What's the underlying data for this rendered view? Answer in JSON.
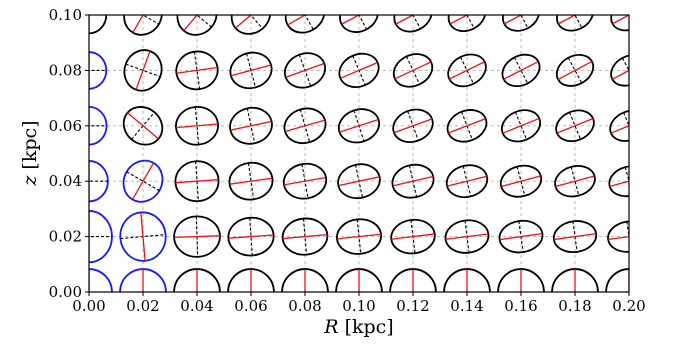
{
  "chart_data": {
    "type": "scatter",
    "title": "",
    "xlabel": {
      "symbol": "R",
      "unit": "[kpc]"
    },
    "ylabel": {
      "symbol": "z",
      "unit": "[kpc]"
    },
    "xlim": [
      0.0,
      0.2
    ],
    "ylim": [
      0.0,
      0.1
    ],
    "xticks": [
      "0.00",
      "0.02",
      "0.04",
      "0.06",
      "0.08",
      "0.10",
      "0.12",
      "0.14",
      "0.16",
      "0.18",
      "0.20"
    ],
    "yticks": [
      "0.00",
      "0.02",
      "0.04",
      "0.06",
      "0.08",
      "0.10"
    ],
    "grid": true,
    "grid_style": "dashed",
    "glyph": "velocity ellipse with major axis (red) and minor axis (dashed black)",
    "colors": {
      "ellipse_default": "#000000",
      "ellipse_highlight": "#1a1aff",
      "major_axis": "#e8131b",
      "minor_axis": "#000000",
      "grid": "#b3b3b3"
    },
    "x": [
      0.0,
      0.02,
      0.04,
      0.06,
      0.08,
      0.1,
      0.12,
      0.14,
      0.16,
      0.18,
      0.2
    ],
    "z": [
      0.0,
      0.02,
      0.04,
      0.06,
      0.08,
      0.1
    ],
    "note_units": "semi-axis lengths a, b given in kpc; tilt in degrees (counterclockwise from +R axis)",
    "points": [
      {
        "R": 0.0,
        "z": 0.0,
        "a": 0.0085,
        "b": 0.0085,
        "tilt": 90,
        "color": "blue"
      },
      {
        "R": 0.02,
        "z": 0.0,
        "a": 0.0085,
        "b": 0.0085,
        "tilt": 90,
        "color": "blue"
      },
      {
        "R": 0.04,
        "z": 0.0,
        "a": 0.0085,
        "b": 0.0085,
        "tilt": 90,
        "color": "black"
      },
      {
        "R": 0.06,
        "z": 0.0,
        "a": 0.0085,
        "b": 0.0085,
        "tilt": 90,
        "color": "black"
      },
      {
        "R": 0.08,
        "z": 0.0,
        "a": 0.0085,
        "b": 0.0085,
        "tilt": 90,
        "color": "black"
      },
      {
        "R": 0.1,
        "z": 0.0,
        "a": 0.0085,
        "b": 0.0085,
        "tilt": 90,
        "color": "black"
      },
      {
        "R": 0.12,
        "z": 0.0,
        "a": 0.0085,
        "b": 0.0085,
        "tilt": 90,
        "color": "black"
      },
      {
        "R": 0.14,
        "z": 0.0,
        "a": 0.0085,
        "b": 0.0085,
        "tilt": 90,
        "color": "black"
      },
      {
        "R": 0.16,
        "z": 0.0,
        "a": 0.0085,
        "b": 0.0085,
        "tilt": 90,
        "color": "black"
      },
      {
        "R": 0.18,
        "z": 0.0,
        "a": 0.0085,
        "b": 0.0085,
        "tilt": 90,
        "color": "black"
      },
      {
        "R": 0.2,
        "z": 0.0,
        "a": 0.0085,
        "b": 0.0085,
        "tilt": 90,
        "color": "black"
      },
      {
        "R": 0.0,
        "z": 0.02,
        "a": 0.0095,
        "b": 0.0085,
        "tilt": 90,
        "color": "blue"
      },
      {
        "R": 0.02,
        "z": 0.02,
        "a": 0.009,
        "b": 0.0084,
        "tilt": 95,
        "color": "blue"
      },
      {
        "R": 0.04,
        "z": 0.02,
        "a": 0.0085,
        "b": 0.0075,
        "tilt": 2,
        "color": "black"
      },
      {
        "R": 0.06,
        "z": 0.02,
        "a": 0.0084,
        "b": 0.007,
        "tilt": 4,
        "color": "black"
      },
      {
        "R": 0.08,
        "z": 0.02,
        "a": 0.0083,
        "b": 0.0067,
        "tilt": 5,
        "color": "black"
      },
      {
        "R": 0.1,
        "z": 0.02,
        "a": 0.0082,
        "b": 0.0064,
        "tilt": 6,
        "color": "black"
      },
      {
        "R": 0.12,
        "z": 0.02,
        "a": 0.0081,
        "b": 0.0062,
        "tilt": 7,
        "color": "black"
      },
      {
        "R": 0.14,
        "z": 0.02,
        "a": 0.008,
        "b": 0.006,
        "tilt": 7,
        "color": "black"
      },
      {
        "R": 0.16,
        "z": 0.02,
        "a": 0.008,
        "b": 0.0058,
        "tilt": 8,
        "color": "black"
      },
      {
        "R": 0.18,
        "z": 0.02,
        "a": 0.0079,
        "b": 0.0057,
        "tilt": 8,
        "color": "black"
      },
      {
        "R": 0.2,
        "z": 0.02,
        "a": 0.0078,
        "b": 0.0056,
        "tilt": 8,
        "color": "black"
      },
      {
        "R": 0.0,
        "z": 0.04,
        "a": 0.0075,
        "b": 0.007,
        "tilt": 90,
        "color": "blue"
      },
      {
        "R": 0.02,
        "z": 0.04,
        "a": 0.0078,
        "b": 0.007,
        "tilt": 60,
        "color": "blue"
      },
      {
        "R": 0.04,
        "z": 0.04,
        "a": 0.008,
        "b": 0.0074,
        "tilt": 4,
        "color": "black"
      },
      {
        "R": 0.06,
        "z": 0.04,
        "a": 0.008,
        "b": 0.0068,
        "tilt": 8,
        "color": "black"
      },
      {
        "R": 0.08,
        "z": 0.04,
        "a": 0.0079,
        "b": 0.0064,
        "tilt": 10,
        "color": "black"
      },
      {
        "R": 0.1,
        "z": 0.04,
        "a": 0.0078,
        "b": 0.0062,
        "tilt": 12,
        "color": "black"
      },
      {
        "R": 0.12,
        "z": 0.04,
        "a": 0.0077,
        "b": 0.006,
        "tilt": 13,
        "color": "black"
      },
      {
        "R": 0.14,
        "z": 0.04,
        "a": 0.0076,
        "b": 0.0058,
        "tilt": 14,
        "color": "black"
      },
      {
        "R": 0.16,
        "z": 0.04,
        "a": 0.0076,
        "b": 0.0056,
        "tilt": 15,
        "color": "black"
      },
      {
        "R": 0.18,
        "z": 0.04,
        "a": 0.0075,
        "b": 0.0055,
        "tilt": 15,
        "color": "black"
      },
      {
        "R": 0.2,
        "z": 0.04,
        "a": 0.0074,
        "b": 0.0054,
        "tilt": 15,
        "color": "black"
      },
      {
        "R": 0.0,
        "z": 0.06,
        "a": 0.007,
        "b": 0.0065,
        "tilt": 90,
        "color": "blue"
      },
      {
        "R": 0.02,
        "z": 0.06,
        "a": 0.0075,
        "b": 0.0066,
        "tilt": 140,
        "color": "black"
      },
      {
        "R": 0.04,
        "z": 0.06,
        "a": 0.0078,
        "b": 0.007,
        "tilt": 5,
        "color": "black"
      },
      {
        "R": 0.06,
        "z": 0.06,
        "a": 0.0078,
        "b": 0.0066,
        "tilt": 12,
        "color": "black"
      },
      {
        "R": 0.08,
        "z": 0.06,
        "a": 0.0077,
        "b": 0.0063,
        "tilt": 16,
        "color": "black"
      },
      {
        "R": 0.1,
        "z": 0.06,
        "a": 0.0076,
        "b": 0.006,
        "tilt": 18,
        "color": "black"
      },
      {
        "R": 0.12,
        "z": 0.06,
        "a": 0.0075,
        "b": 0.0058,
        "tilt": 20,
        "color": "black"
      },
      {
        "R": 0.14,
        "z": 0.06,
        "a": 0.0074,
        "b": 0.0056,
        "tilt": 21,
        "color": "black"
      },
      {
        "R": 0.16,
        "z": 0.06,
        "a": 0.0073,
        "b": 0.0055,
        "tilt": 22,
        "color": "black"
      },
      {
        "R": 0.18,
        "z": 0.06,
        "a": 0.0072,
        "b": 0.0054,
        "tilt": 22,
        "color": "black"
      },
      {
        "R": 0.2,
        "z": 0.06,
        "a": 0.0072,
        "b": 0.0053,
        "tilt": 22,
        "color": "black"
      },
      {
        "R": 0.0,
        "z": 0.08,
        "a": 0.0068,
        "b": 0.0064,
        "tilt": 90,
        "color": "blue"
      },
      {
        "R": 0.02,
        "z": 0.08,
        "a": 0.0076,
        "b": 0.0068,
        "tilt": 70,
        "color": "black"
      },
      {
        "R": 0.04,
        "z": 0.08,
        "a": 0.0077,
        "b": 0.007,
        "tilt": 8,
        "color": "black"
      },
      {
        "R": 0.06,
        "z": 0.08,
        "a": 0.0077,
        "b": 0.0065,
        "tilt": 15,
        "color": "black"
      },
      {
        "R": 0.08,
        "z": 0.08,
        "a": 0.0076,
        "b": 0.0062,
        "tilt": 20,
        "color": "black"
      },
      {
        "R": 0.1,
        "z": 0.08,
        "a": 0.0075,
        "b": 0.0059,
        "tilt": 23,
        "color": "black"
      },
      {
        "R": 0.12,
        "z": 0.08,
        "a": 0.0074,
        "b": 0.0057,
        "tilt": 25,
        "color": "black"
      },
      {
        "R": 0.14,
        "z": 0.08,
        "a": 0.0073,
        "b": 0.0055,
        "tilt": 26,
        "color": "black"
      },
      {
        "R": 0.16,
        "z": 0.08,
        "a": 0.0072,
        "b": 0.0054,
        "tilt": 27,
        "color": "black"
      },
      {
        "R": 0.18,
        "z": 0.08,
        "a": 0.0071,
        "b": 0.0053,
        "tilt": 28,
        "color": "black"
      },
      {
        "R": 0.2,
        "z": 0.08,
        "a": 0.007,
        "b": 0.0052,
        "tilt": 28,
        "color": "black"
      },
      {
        "R": 0.0,
        "z": 0.1,
        "a": 0.0068,
        "b": 0.0064,
        "tilt": 90,
        "color": "black"
      },
      {
        "R": 0.02,
        "z": 0.1,
        "a": 0.0075,
        "b": 0.0068,
        "tilt": 60,
        "color": "black"
      },
      {
        "R": 0.04,
        "z": 0.1,
        "a": 0.0076,
        "b": 0.007,
        "tilt": 50,
        "color": "black"
      },
      {
        "R": 0.06,
        "z": 0.1,
        "a": 0.0075,
        "b": 0.0066,
        "tilt": 40,
        "color": "black"
      },
      {
        "R": 0.08,
        "z": 0.1,
        "a": 0.0074,
        "b": 0.0062,
        "tilt": 30,
        "color": "black"
      },
      {
        "R": 0.1,
        "z": 0.1,
        "a": 0.0073,
        "b": 0.006,
        "tilt": 28,
        "color": "black"
      },
      {
        "R": 0.12,
        "z": 0.1,
        "a": 0.0072,
        "b": 0.0058,
        "tilt": 28,
        "color": "black"
      },
      {
        "R": 0.14,
        "z": 0.1,
        "a": 0.0071,
        "b": 0.0056,
        "tilt": 28,
        "color": "black"
      },
      {
        "R": 0.16,
        "z": 0.1,
        "a": 0.007,
        "b": 0.0055,
        "tilt": 28,
        "color": "black"
      },
      {
        "R": 0.18,
        "z": 0.1,
        "a": 0.007,
        "b": 0.0054,
        "tilt": 28,
        "color": "black"
      },
      {
        "R": 0.2,
        "z": 0.1,
        "a": 0.0069,
        "b": 0.0053,
        "tilt": 28,
        "color": "black"
      }
    ]
  }
}
